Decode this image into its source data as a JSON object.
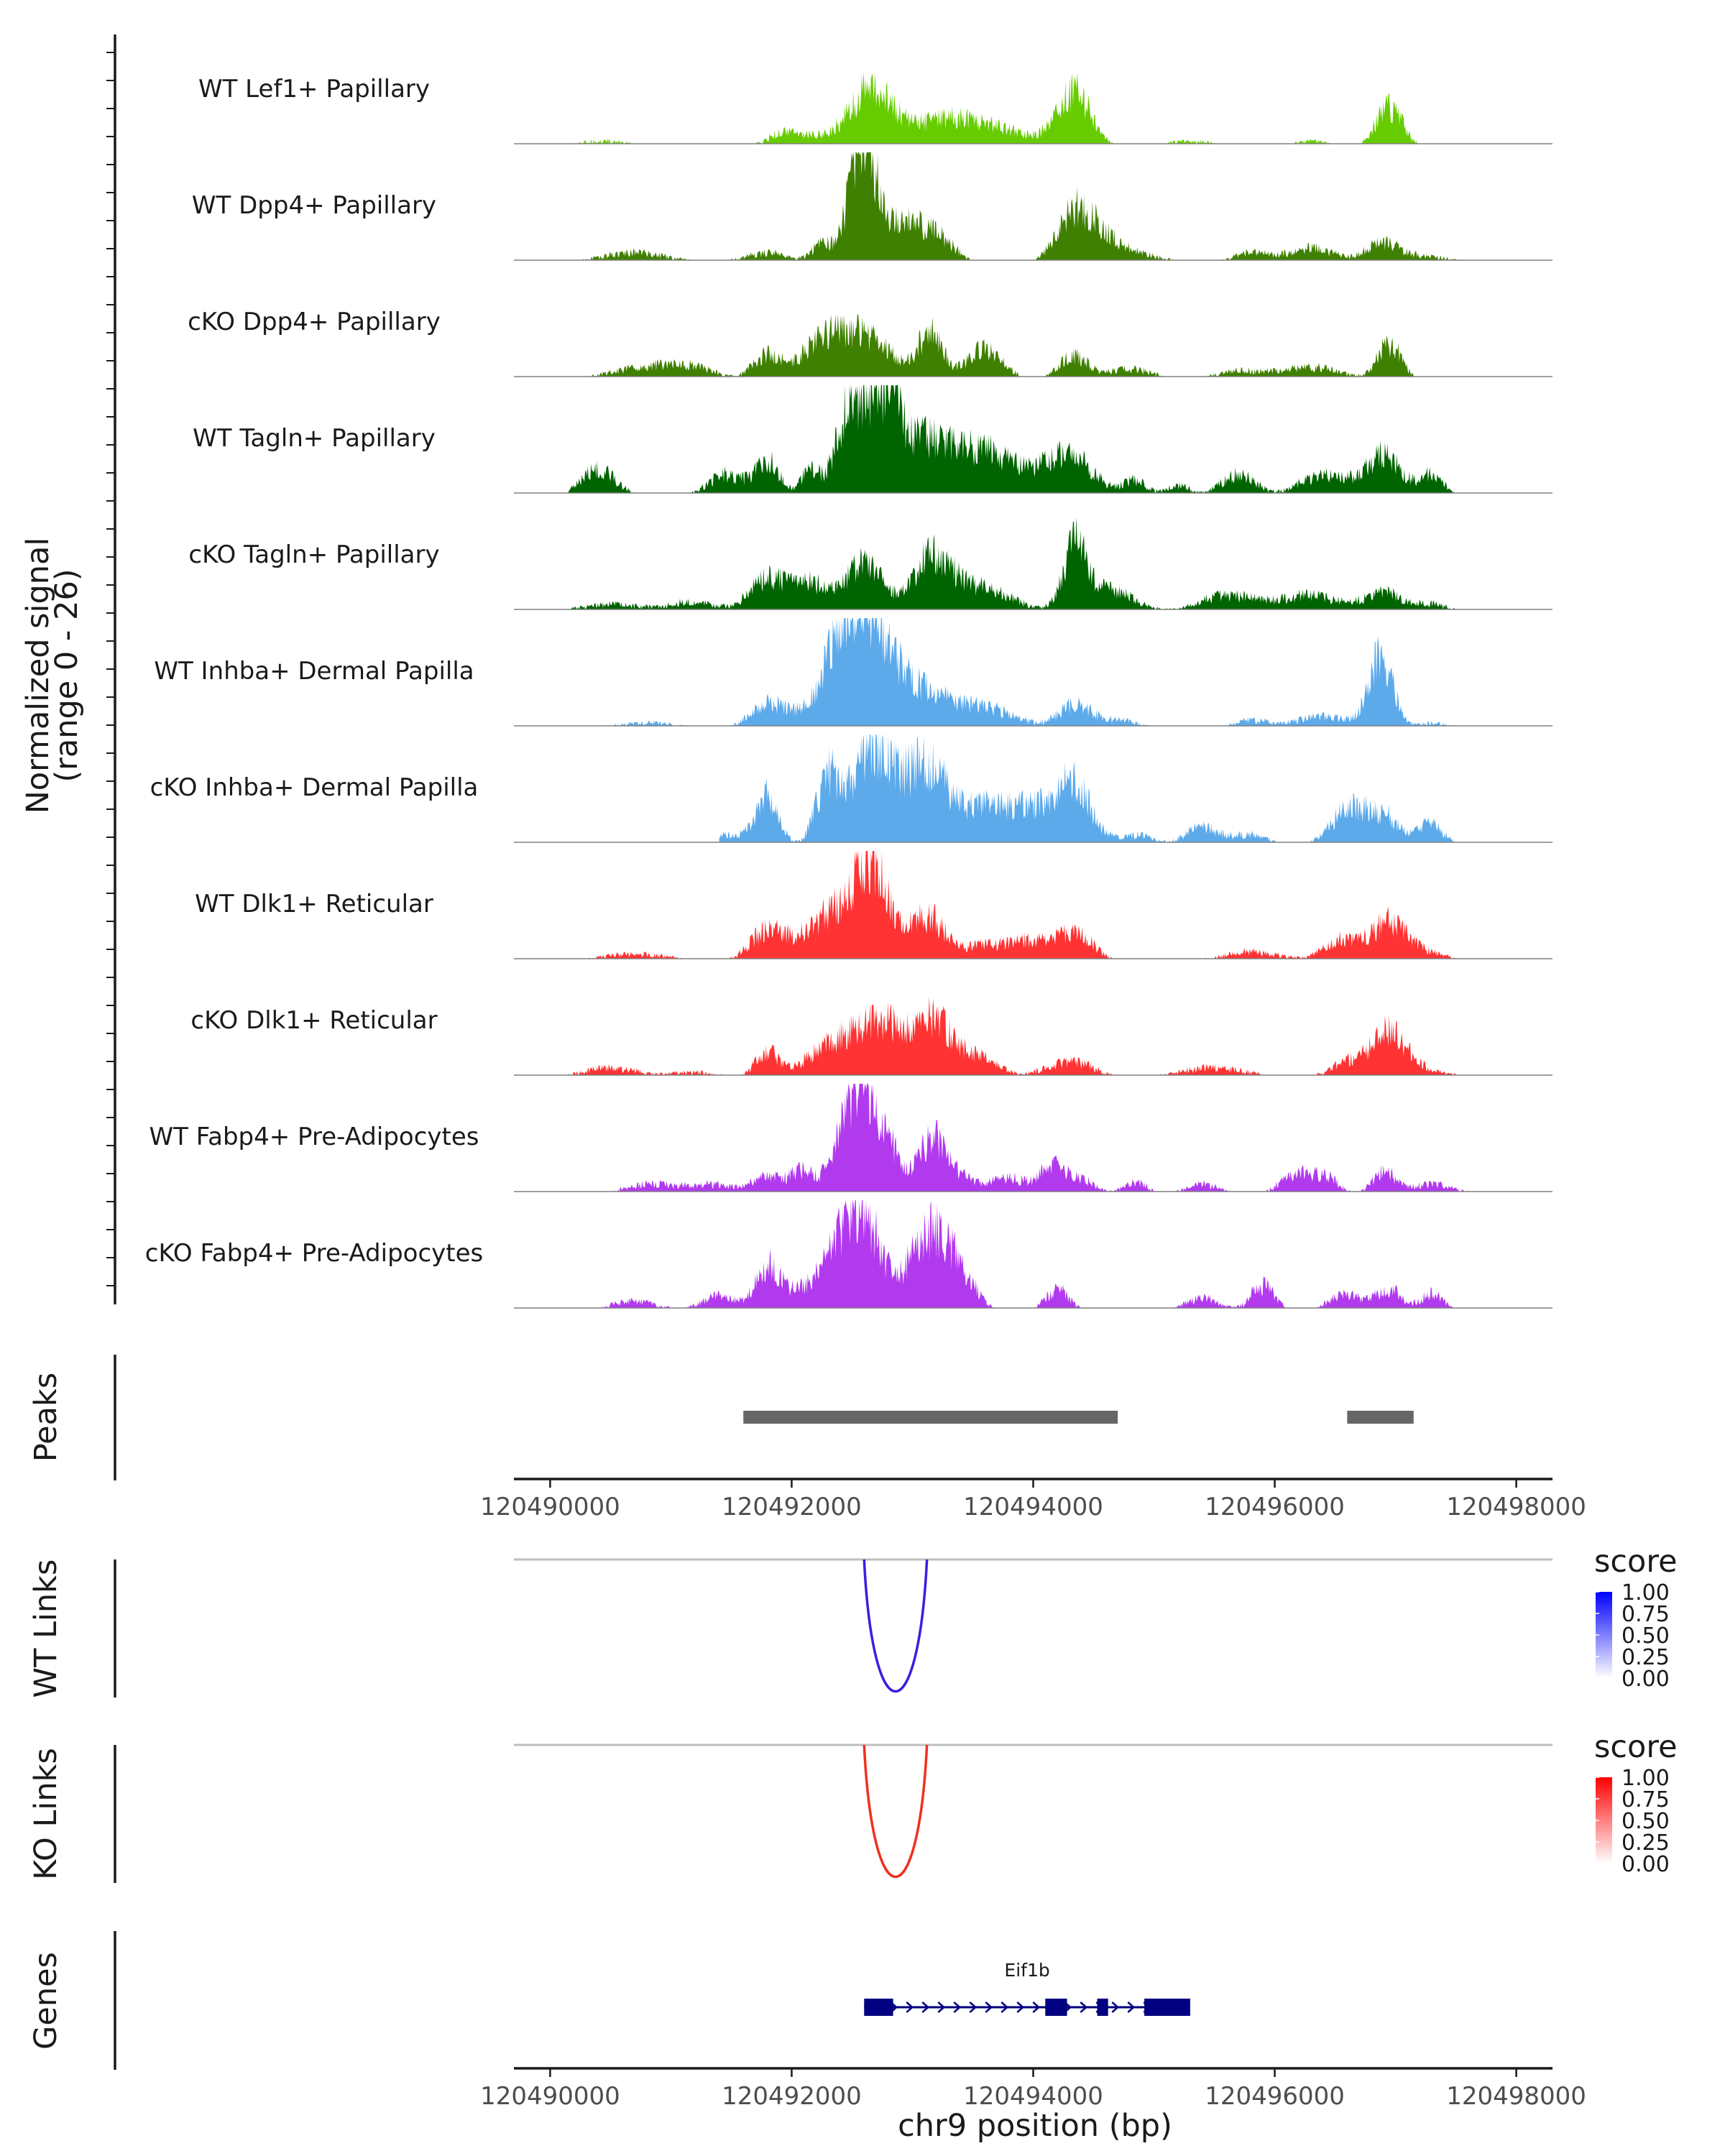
{
  "chart_data": {
    "type": "area",
    "figure": "coverage plot",
    "x_axis": {
      "label": "chr9 position (bp)",
      "range": [
        120489700,
        120498300
      ],
      "ticks": [
        "120490000",
        "120492000",
        "120494000",
        "120496000",
        "120498000"
      ],
      "tick_values": [
        120490000,
        120492000,
        120494000,
        120496000,
        120498000
      ]
    },
    "y_axis": {
      "label_line1": "Normalized signal",
      "label_line2": "(range 0 - 26)",
      "range": [
        0,
        26
      ]
    },
    "tracks": [
      {
        "name": "WT Lef1+ Papillary",
        "color": "#66CC00",
        "peaks": [
          [
            120491900,
            0.35,
            130
          ],
          [
            120492650,
            2.6,
            180
          ],
          [
            120493600,
            0.9,
            350
          ],
          [
            120494340,
            2.4,
            140
          ],
          [
            120496950,
            1.8,
            110
          ],
          [
            120492100,
            0.5,
            200
          ],
          [
            120493200,
            0.8,
            250
          ],
          [
            120495300,
            0.3,
            200
          ],
          [
            120490450,
            0.3,
            250
          ],
          [
            120496300,
            0.3,
            150
          ]
        ],
        "start": 120490200,
        "end": 120497700
      },
      {
        "name": "WT Dpp4+ Papillary",
        "color": "#3F8000",
        "peaks": [
          [
            120492580,
            5.0,
            100
          ],
          [
            120492850,
            1.8,
            250
          ],
          [
            120493200,
            0.8,
            150
          ],
          [
            120494350,
            2.3,
            150
          ],
          [
            120494600,
            0.8,
            150
          ],
          [
            120492250,
            0.8,
            80
          ],
          [
            120491800,
            0.5,
            200
          ],
          [
            120490700,
            0.5,
            300
          ],
          [
            120496300,
            0.7,
            200
          ],
          [
            120496900,
            0.9,
            150
          ],
          [
            120495800,
            0.5,
            150
          ],
          [
            120494900,
            0.4,
            200
          ],
          [
            120497300,
            0.3,
            200
          ]
        ],
        "start": 120490150,
        "end": 120497800
      },
      {
        "name": "cKO Dpp4+ Papillary",
        "color": "#3F8000",
        "peaks": [
          [
            120492550,
            2.2,
            250
          ],
          [
            120492200,
            1.0,
            150
          ],
          [
            120491800,
            1.1,
            120
          ],
          [
            120493150,
            2.1,
            100
          ],
          [
            120493600,
            1.4,
            150
          ],
          [
            120494330,
            1.1,
            120
          ],
          [
            120494800,
            0.5,
            200
          ],
          [
            120496950,
            1.6,
            100
          ],
          [
            120496300,
            0.6,
            250
          ],
          [
            120490800,
            0.6,
            300
          ],
          [
            120491200,
            0.4,
            200
          ],
          [
            120495700,
            0.4,
            200
          ]
        ],
        "start": 120490150,
        "end": 120497700
      },
      {
        "name": "WT Tagln+ Papillary",
        "color": "#006400",
        "peaks": [
          [
            120492500,
            4.2,
            120
          ],
          [
            120492780,
            3.2,
            100
          ],
          [
            120493000,
            2.4,
            250
          ],
          [
            120493600,
            2.0,
            300
          ],
          [
            120494300,
            1.8,
            200
          ],
          [
            120491800,
            1.6,
            100
          ],
          [
            120492150,
            1.2,
            80
          ],
          [
            120491450,
            1.0,
            150
          ],
          [
            120490400,
            1.2,
            150
          ],
          [
            120496900,
            1.8,
            150
          ],
          [
            120496400,
            1.0,
            200
          ],
          [
            120495700,
            1.0,
            150
          ],
          [
            120497300,
            1.0,
            100
          ],
          [
            120494850,
            0.7,
            100
          ],
          [
            120495200,
            0.5,
            100
          ]
        ],
        "start": 120490150,
        "end": 120497700
      },
      {
        "name": "cKO Tagln+ Papillary",
        "color": "#006400",
        "peaks": [
          [
            120492600,
            2.3,
            150
          ],
          [
            120493150,
            2.0,
            150
          ],
          [
            120494350,
            2.9,
            100
          ],
          [
            120491800,
            1.5,
            150
          ],
          [
            120492150,
            1.3,
            150
          ],
          [
            120493500,
            1.2,
            300
          ],
          [
            120494650,
            1.0,
            200
          ],
          [
            120495600,
            0.8,
            250
          ],
          [
            120496300,
            0.8,
            250
          ],
          [
            120496900,
            0.9,
            150
          ],
          [
            120491200,
            0.5,
            200
          ],
          [
            120490500,
            0.4,
            300
          ],
          [
            120497300,
            0.4,
            150
          ]
        ],
        "start": 120490150,
        "end": 120497800
      },
      {
        "name": "WT Inhba+ Dermal Papilla",
        "color": "#5DAAEB",
        "peaks": [
          [
            120492580,
            4.2,
            150
          ],
          [
            120492400,
            2.5,
            120
          ],
          [
            120492800,
            2.0,
            150
          ],
          [
            120493100,
            1.5,
            200
          ],
          [
            120491800,
            1.2,
            150
          ],
          [
            120492200,
            1.0,
            150
          ],
          [
            120493600,
            1.0,
            250
          ],
          [
            120494350,
            1.1,
            150
          ],
          [
            120494750,
            0.4,
            150
          ],
          [
            120496880,
            3.1,
            100
          ],
          [
            120496400,
            0.6,
            250
          ],
          [
            120495800,
            0.4,
            150
          ],
          [
            120490800,
            0.3,
            300
          ],
          [
            120497300,
            0.3,
            150
          ]
        ],
        "start": 120490150,
        "end": 120497700
      },
      {
        "name": "cKO Inhba+ Dermal Papilla",
        "color": "#5DAAEB",
        "peaks": [
          [
            120492650,
            3.6,
            150
          ],
          [
            120492300,
            3.0,
            100
          ],
          [
            120492900,
            2.0,
            200
          ],
          [
            120491800,
            2.2,
            100
          ],
          [
            120493150,
            2.3,
            150
          ],
          [
            120493600,
            1.8,
            250
          ],
          [
            120494330,
            2.7,
            150
          ],
          [
            120494000,
            1.2,
            150
          ],
          [
            120496600,
            1.5,
            150
          ],
          [
            120496900,
            1.3,
            150
          ],
          [
            120495400,
            0.8,
            150
          ],
          [
            120497300,
            1.0,
            100
          ],
          [
            120494850,
            0.5,
            150
          ],
          [
            120495800,
            0.5,
            150
          ],
          [
            120491450,
            0.5,
            150
          ]
        ],
        "start": 120491400,
        "end": 120497500
      },
      {
        "name": "WT Dlk1+ Reticular",
        "color": "#FF3333",
        "peaks": [
          [
            120492650,
            4.0,
            120
          ],
          [
            120492400,
            2.0,
            150
          ],
          [
            120492900,
            1.2,
            150
          ],
          [
            120493150,
            1.6,
            120
          ],
          [
            120491800,
            1.4,
            150
          ],
          [
            120492150,
            1.0,
            150
          ],
          [
            120493600,
            0.8,
            250
          ],
          [
            120494350,
            1.3,
            150
          ],
          [
            120494000,
            0.7,
            150
          ],
          [
            120496950,
            1.8,
            150
          ],
          [
            120496550,
            1.0,
            150
          ],
          [
            120495800,
            0.5,
            250
          ],
          [
            120490700,
            0.4,
            300
          ],
          [
            120497300,
            0.4,
            150
          ]
        ],
        "start": 120490150,
        "end": 120497800
      },
      {
        "name": "cKO Dlk1+ Reticular",
        "color": "#FF3333",
        "peaks": [
          [
            120492550,
            2.0,
            200
          ],
          [
            120492800,
            1.5,
            150
          ],
          [
            120493150,
            2.5,
            150
          ],
          [
            120493500,
            1.0,
            200
          ],
          [
            120491800,
            1.2,
            100
          ],
          [
            120492200,
            0.8,
            150
          ],
          [
            120494300,
            0.8,
            200
          ],
          [
            120496950,
            2.0,
            150
          ],
          [
            120496600,
            0.7,
            150
          ],
          [
            120495500,
            0.5,
            300
          ],
          [
            120490500,
            0.5,
            250
          ],
          [
            120491200,
            0.3,
            200
          ],
          [
            120497300,
            0.3,
            200
          ]
        ],
        "start": 120490150,
        "end": 120497500
      },
      {
        "name": "WT Fabp4+ Pre-Adipocytes",
        "color": "#B23AEE",
        "peaks": [
          [
            120492600,
            5.0,
            120
          ],
          [
            120492400,
            2.0,
            100
          ],
          [
            120492850,
            1.5,
            100
          ],
          [
            120493150,
            2.2,
            100
          ],
          [
            120493350,
            1.0,
            150
          ],
          [
            120492100,
            1.0,
            100
          ],
          [
            120491800,
            0.8,
            150
          ],
          [
            120493800,
            0.8,
            150
          ],
          [
            120494150,
            1.0,
            100
          ],
          [
            120494350,
            0.8,
            150
          ],
          [
            120494850,
            0.6,
            100
          ],
          [
            120496200,
            1.0,
            150
          ],
          [
            120496900,
            1.0,
            100
          ],
          [
            120496450,
            0.6,
            100
          ],
          [
            120497300,
            0.5,
            200
          ],
          [
            120490800,
            0.5,
            200
          ],
          [
            120491300,
            0.5,
            200
          ],
          [
            120495400,
            0.5,
            150
          ]
        ],
        "start": 120490300,
        "end": 120497800
      },
      {
        "name": "cKO Fabp4+ Pre-Adipocytes",
        "color": "#B23AEE",
        "peaks": [
          [
            120492600,
            3.8,
            150
          ],
          [
            120492400,
            2.0,
            150
          ],
          [
            120493100,
            3.0,
            150
          ],
          [
            120493350,
            2.0,
            150
          ],
          [
            120491800,
            2.0,
            100
          ],
          [
            120492100,
            0.9,
            150
          ],
          [
            120494200,
            1.0,
            100
          ],
          [
            120495900,
            1.2,
            100
          ],
          [
            120496950,
            1.0,
            100
          ],
          [
            120496600,
            0.8,
            150
          ],
          [
            120495400,
            0.6,
            150
          ],
          [
            120497300,
            0.8,
            100
          ],
          [
            120490700,
            0.5,
            200
          ],
          [
            120491400,
            0.7,
            150
          ]
        ],
        "start": 120490250,
        "end": 120497500
      }
    ],
    "peaks_track": {
      "label": "Peaks",
      "color": "#666666",
      "regions": [
        [
          120491600,
          120494700
        ],
        [
          120496600,
          120497150
        ]
      ]
    },
    "links": [
      {
        "label": "WT Links",
        "color": "#3D1EDE",
        "start": 120492600,
        "end": 120493120,
        "score": 0.75
      },
      {
        "label": "KO Links",
        "color": "#F0301E",
        "start": 120492600,
        "end": 120493120,
        "score": 0.75
      }
    ],
    "legends": [
      {
        "title": "score",
        "low_color": "#ffffff",
        "high_color": "#0000FF",
        "ticks": [
          "1.00",
          "0.75",
          "0.50",
          "0.25",
          "0.00"
        ]
      },
      {
        "title": "score",
        "low_color": "#ffffff",
        "high_color": "#FF0000",
        "ticks": [
          "1.00",
          "0.75",
          "0.50",
          "0.25",
          "0.00"
        ]
      }
    ],
    "genes_track": {
      "label": "Genes",
      "color": "#000080",
      "gene": {
        "name": "Eif1b",
        "strand": "+",
        "start": 120492600,
        "end": 120495300,
        "exons": [
          [
            120492600,
            120492840
          ],
          [
            120494100,
            120494280
          ],
          [
            120494530,
            120494620
          ],
          [
            120494920,
            120495300
          ]
        ]
      }
    }
  }
}
